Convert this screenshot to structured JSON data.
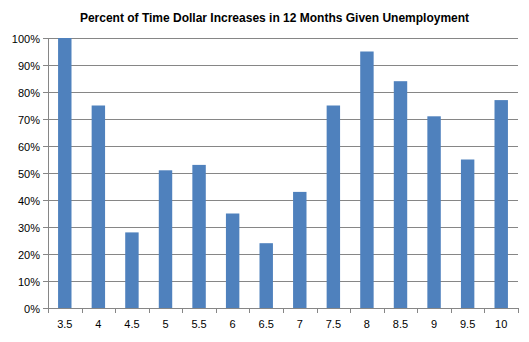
{
  "chart_data": {
    "type": "bar",
    "title": "Percent of Time Dollar Increases in 12 Months Given Unemployment",
    "categories": [
      "3.5",
      "4",
      "4.5",
      "5",
      "5.5",
      "6",
      "6.5",
      "7",
      "7.5",
      "8",
      "8.5",
      "9",
      "9.5",
      "10"
    ],
    "values": [
      100,
      75,
      28,
      51,
      53,
      35,
      24,
      43,
      75,
      95,
      84,
      71,
      55,
      77
    ],
    "color": "#4f81bd",
    "ylim": [
      0,
      100
    ],
    "yticks": [
      {
        "value": 0,
        "label": "0%"
      },
      {
        "value": 10,
        "label": "10%"
      },
      {
        "value": 20,
        "label": "20%"
      },
      {
        "value": 30,
        "label": "30%"
      },
      {
        "value": 40,
        "label": "40%"
      },
      {
        "value": 50,
        "label": "50%"
      },
      {
        "value": 60,
        "label": "60%"
      },
      {
        "value": 70,
        "label": "70%"
      },
      {
        "value": 80,
        "label": "80%"
      },
      {
        "value": 90,
        "label": "90%"
      },
      {
        "value": 100,
        "label": "100%"
      }
    ],
    "grid": true
  }
}
